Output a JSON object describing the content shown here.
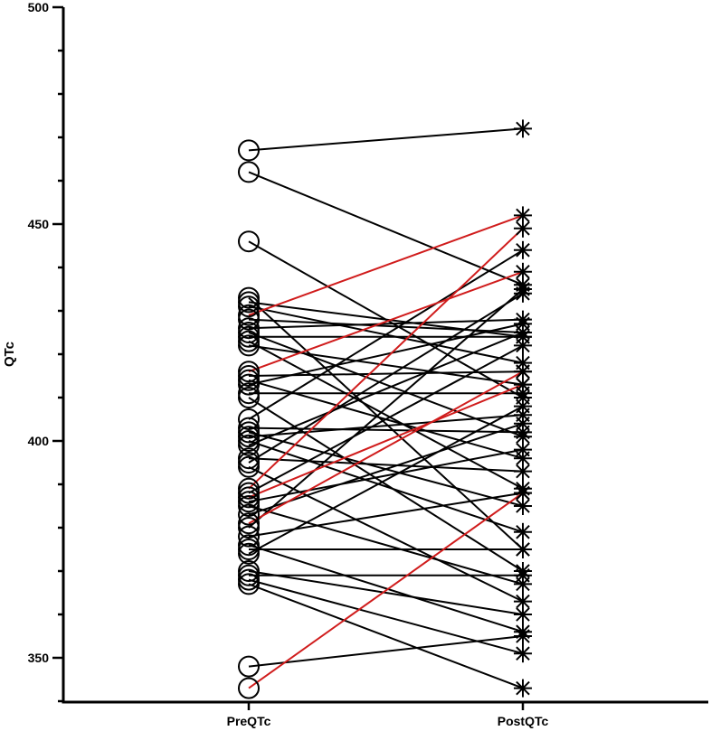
{
  "chart_data": {
    "type": "line",
    "style": "paired-slope",
    "ylabel": "QTc",
    "xlabel": "",
    "categories": [
      "PreQTc",
      "PostQTc"
    ],
    "ylim": [
      340,
      500
    ],
    "yticks_major": [
      350,
      400,
      450,
      500
    ],
    "yticks_minor_step": 10,
    "markers": {
      "PreQTc": "open-circle",
      "PostQTc": "asterisk"
    },
    "colors": {
      "default": "#000000",
      "highlight": "#d01c1c"
    },
    "grid": false,
    "pairs": [
      {
        "pre": 467,
        "post": 472,
        "highlight": false
      },
      {
        "pre": 462,
        "post": 436,
        "highlight": false
      },
      {
        "pre": 446,
        "post": 410,
        "highlight": false
      },
      {
        "pre": 433,
        "post": 375,
        "highlight": false
      },
      {
        "pre": 432,
        "post": 424,
        "highlight": false
      },
      {
        "pre": 431,
        "post": 418,
        "highlight": false
      },
      {
        "pre": 429,
        "post": 452,
        "highlight": true
      },
      {
        "pre": 428,
        "post": 425,
        "highlight": false
      },
      {
        "pre": 426,
        "post": 428,
        "highlight": false
      },
      {
        "pre": 425,
        "post": 401,
        "highlight": false
      },
      {
        "pre": 424,
        "post": 424,
        "highlight": false
      },
      {
        "pre": 423,
        "post": 389,
        "highlight": false
      },
      {
        "pre": 422,
        "post": 413,
        "highlight": false
      },
      {
        "pre": 416,
        "post": 439,
        "highlight": true
      },
      {
        "pre": 415,
        "post": 416,
        "highlight": false
      },
      {
        "pre": 414,
        "post": 396,
        "highlight": false
      },
      {
        "pre": 413,
        "post": 427,
        "highlight": false
      },
      {
        "pre": 411,
        "post": 411,
        "highlight": false
      },
      {
        "pre": 410,
        "post": 370,
        "highlight": false
      },
      {
        "pre": 405,
        "post": 444,
        "highlight": false
      },
      {
        "pre": 403,
        "post": 402,
        "highlight": false
      },
      {
        "pre": 402,
        "post": 385,
        "highlight": false
      },
      {
        "pre": 401,
        "post": 406,
        "highlight": false
      },
      {
        "pre": 400,
        "post": 379,
        "highlight": false
      },
      {
        "pre": 399,
        "post": 425,
        "highlight": false
      },
      {
        "pre": 396,
        "post": 393,
        "highlight": false
      },
      {
        "pre": 395,
        "post": 434,
        "highlight": false
      },
      {
        "pre": 394,
        "post": 363,
        "highlight": false
      },
      {
        "pre": 389,
        "post": 449,
        "highlight": true
      },
      {
        "pre": 388,
        "post": 422,
        "highlight": false
      },
      {
        "pre": 387,
        "post": 413,
        "highlight": true
      },
      {
        "pre": 386,
        "post": 398,
        "highlight": false
      },
      {
        "pre": 385,
        "post": 367,
        "highlight": false
      },
      {
        "pre": 383,
        "post": 404,
        "highlight": false
      },
      {
        "pre": 381,
        "post": 416,
        "highlight": true
      },
      {
        "pre": 380,
        "post": 435,
        "highlight": false
      },
      {
        "pre": 378,
        "post": 388,
        "highlight": false
      },
      {
        "pre": 376,
        "post": 356,
        "highlight": false
      },
      {
        "pre": 375,
        "post": 375,
        "highlight": false
      },
      {
        "pre": 374,
        "post": 408,
        "highlight": false
      },
      {
        "pre": 370,
        "post": 360,
        "highlight": false
      },
      {
        "pre": 369,
        "post": 369,
        "highlight": false
      },
      {
        "pre": 368,
        "post": 351,
        "highlight": false
      },
      {
        "pre": 367,
        "post": 343,
        "highlight": false
      },
      {
        "pre": 348,
        "post": 355,
        "highlight": false
      },
      {
        "pre": 343,
        "post": 388,
        "highlight": true
      }
    ]
  }
}
